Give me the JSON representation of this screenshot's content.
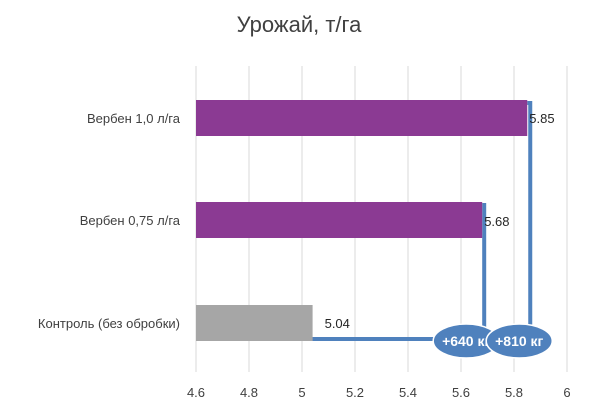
{
  "chart_data": {
    "type": "bar",
    "orientation": "horizontal",
    "title": "Урожай, т/га",
    "categories": [
      "Вербен 1,0 л/га",
      "Вербен 0,75 л/га",
      "Контроль (без обробки)"
    ],
    "values": [
      5.85,
      5.68,
      5.04
    ],
    "value_labels": [
      "5.85",
      "5.68",
      "5.04"
    ],
    "xlim": [
      4.6,
      6.0
    ],
    "x_ticks": [
      "4.6",
      "4.8",
      "5",
      "5.2",
      "5.4",
      "5.6",
      "5.8",
      "6"
    ],
    "grid": true,
    "legend": "none",
    "bar_colors": [
      "#8B3A93",
      "#8B3A93",
      "#A6A6A6"
    ],
    "annotations": [
      {
        "text": "+640 кг",
        "from": 5.04,
        "to": 5.68
      },
      {
        "text": "+810 кг",
        "from": 5.04,
        "to": 5.85
      }
    ],
    "annotation_color": "#4F81BD"
  }
}
